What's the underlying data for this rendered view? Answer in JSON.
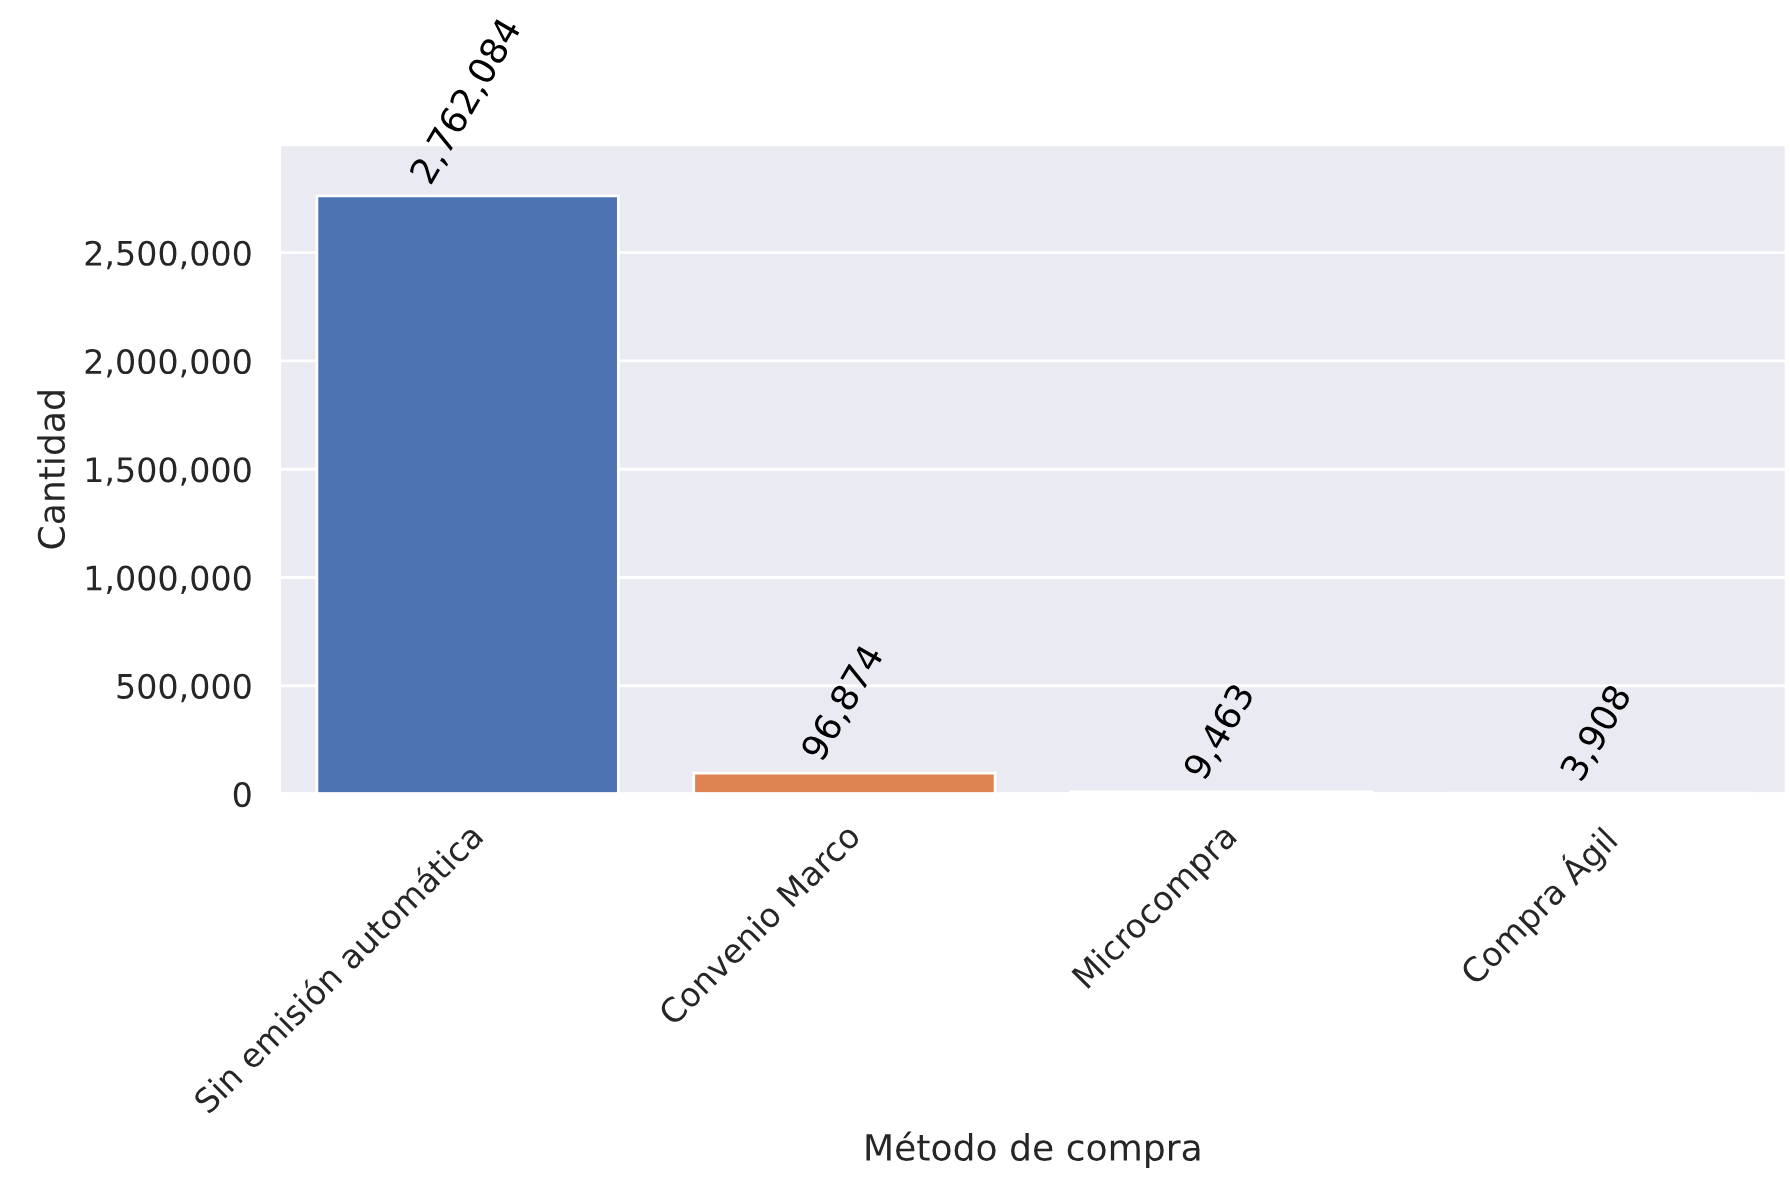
{
  "chart_data": {
    "type": "bar",
    "xlabel": "Método de compra",
    "ylabel": "Cantidad",
    "categories": [
      "Sin emisión automática",
      "Convenio Marco",
      "Microcompra",
      "Compra Ágil"
    ],
    "values": [
      2762084,
      96874,
      9463,
      3908
    ],
    "colors": [
      "#4c72b0",
      "#dd8452",
      "#55a868",
      "#c44e52"
    ],
    "value_labels": [
      "2,762,084",
      "96,874",
      "9,463",
      "3,908"
    ],
    "ylim": [
      0,
      3000000
    ],
    "yticks": [
      0,
      {
        "value": 500000,
        "label": "500,000"
      },
      {
        "value": 1000000,
        "label": "1,000,000"
      },
      {
        "value": 1500000,
        "label": "1,500,000"
      },
      {
        "value": 2000000,
        "label": "2,000,000"
      },
      {
        "value": 2500000,
        "label": "2,500,000"
      }
    ],
    "grid": "y",
    "legend": false
  }
}
